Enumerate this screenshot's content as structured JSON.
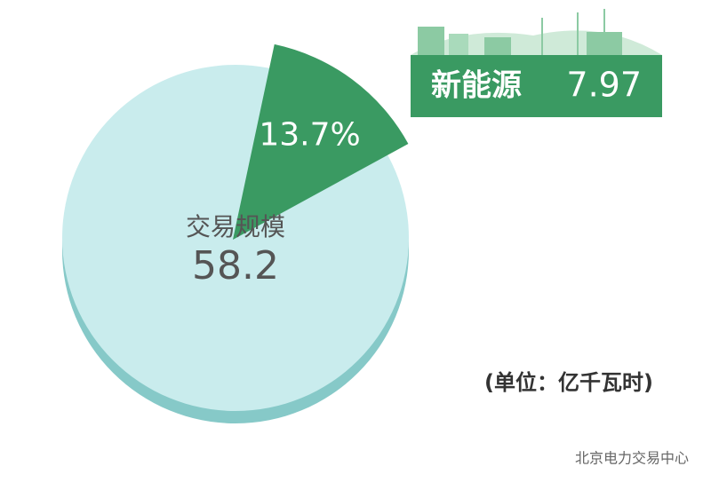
{
  "chart_data": {
    "type": "pie",
    "total_label": "交易规模",
    "total": 58.2,
    "series": [
      {
        "name": "新能源",
        "value": 13.7,
        "value_label": "13.7%",
        "amount": 7.97,
        "color": "#3a9a62"
      }
    ],
    "rest_color": "#c9eced",
    "unit_note": "(单位：亿千瓦时)"
  },
  "watermark": "北京电力交易中心"
}
